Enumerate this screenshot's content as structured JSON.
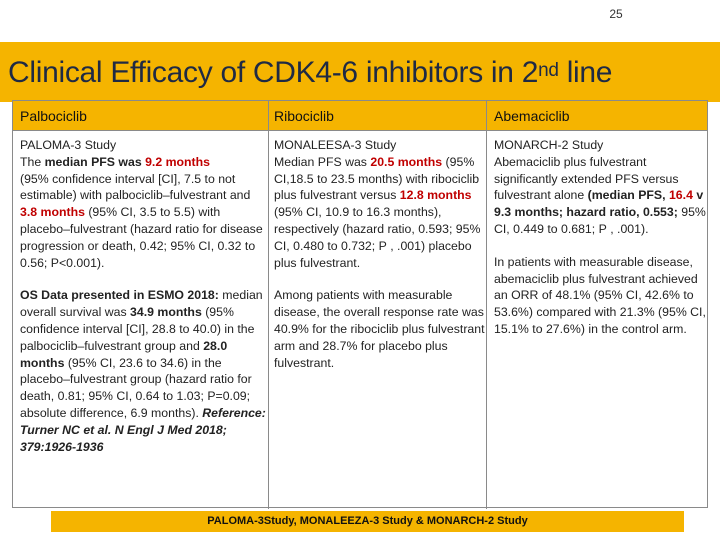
{
  "page_number": "25",
  "title": {
    "main": "Clinical Efficacy of CDK4-6 inhibitors in 2",
    "superscript": "nd",
    "suffix": " line"
  },
  "columns": [
    {
      "header": "Palbociclib",
      "paragraphs": [
        {
          "segments": [
            {
              "text": "PALOMA-3 Study",
              "style": "plain"
            },
            {
              "text": "\n",
              "style": "plain"
            },
            {
              "text": "The ",
              "style": "plain"
            },
            {
              "text": "median PFS was ",
              "style": "bold"
            },
            {
              "text": "9.2 months",
              "style": "red"
            },
            {
              "text": "\n(95% confidence interval [CI], 7.5 to not estimable) with palbociclib–fulvestrant and ",
              "style": "plain"
            },
            {
              "text": "3.8 months",
              "style": "red"
            },
            {
              "text": " (95% CI, 3.5 to 5.5) with placebo–fulvestrant (hazard ratio for disease progression or death, 0.42; 95% CI, 0.32 to 0.56; P<0.001).",
              "style": "plain"
            }
          ]
        },
        {
          "segments": [
            {
              "text": "OS Data presented in ESMO 2018:",
              "style": "bold"
            },
            {
              "text": " median overall survival was ",
              "style": "plain"
            },
            {
              "text": "34.9 months",
              "style": "bold"
            },
            {
              "text": " (95% confidence interval [CI], 28.8 to 40.0) in the palbociclib–fulvestrant group and ",
              "style": "plain"
            },
            {
              "text": "28.0 months",
              "style": "bold"
            },
            {
              "text": " (95% CI, 23.6 to 34.6) in the placebo–fulvestrant group (hazard ratio for death, 0.81; 95% CI, 0.64 to 1.03; P=0.09; absolute difference, 6.9 months). ",
              "style": "plain"
            },
            {
              "text": "Reference: Turner NC et al. N Engl J Med 2018; 379:1926-1936",
              "style": "italic-bold"
            }
          ]
        }
      ]
    },
    {
      "header": "Ribociclib",
      "paragraphs": [
        {
          "segments": [
            {
              "text": "MONALEESA-3 Study",
              "style": "plain"
            },
            {
              "text": "\n",
              "style": "plain"
            },
            {
              "text": "Median PFS was  ",
              "style": "plain"
            },
            {
              "text": "20.5 months",
              "style": "red"
            },
            {
              "text": " (95% CI,18.5 to 23.5 months) with ribociclib plus fulvestrant versus ",
              "style": "plain"
            },
            {
              "text": "12.8 months",
              "style": "red"
            },
            {
              "text": " (95% CI, 10.9 to 16.3 months), respectively (hazard ratio, 0.593; 95% CI, 0.480 to 0.732; P , .001) placebo plus fulvestrant.",
              "style": "plain"
            }
          ]
        },
        {
          "segments": [
            {
              "text": "Among patients with measurable disease, the overall response rate was 40.9% for the ribociclib plus fulvestrant arm and 28.7% for placebo plus fulvestrant.",
              "style": "plain"
            }
          ]
        }
      ]
    },
    {
      "header": "Abemaciclib",
      "paragraphs": [
        {
          "segments": [
            {
              "text": "MONARCH-2 Study",
              "style": "plain"
            },
            {
              "text": "\n",
              "style": "plain"
            },
            {
              "text": "Abemaciclib plus fulvestrant significantly extended PFS versus fulvestrant alone ",
              "style": "plain"
            },
            {
              "text": "(median PFS, ",
              "style": "bold"
            },
            {
              "text": "16.4",
              "style": "red"
            },
            {
              "text": " v 9.3 months",
              "style": "bold"
            },
            {
              "text": "; hazard ratio, 0.553; ",
              "style": "bold"
            },
            {
              "text": "95% CI, 0.449 to 0.681; P , .001).",
              "style": "plain"
            }
          ]
        },
        {
          "segments": [
            {
              "text": "In patients with measurable disease, abemaciclib plus fulvestrant achieved an ORR of 48.1% (95% CI, 42.6% to 53.6%) compared with 21.3% (95% CI, 15.1% to 27.6%) in the control arm.",
              "style": "plain"
            }
          ]
        }
      ]
    }
  ],
  "footer": "PALOMA-3Study, MONALEEZA-3 Study & MONARCH-2 Study",
  "colors": {
    "accent": "#f5b400",
    "highlight": "#c00000",
    "title_text": "#1f2a44",
    "border": "#8a8a8a"
  }
}
